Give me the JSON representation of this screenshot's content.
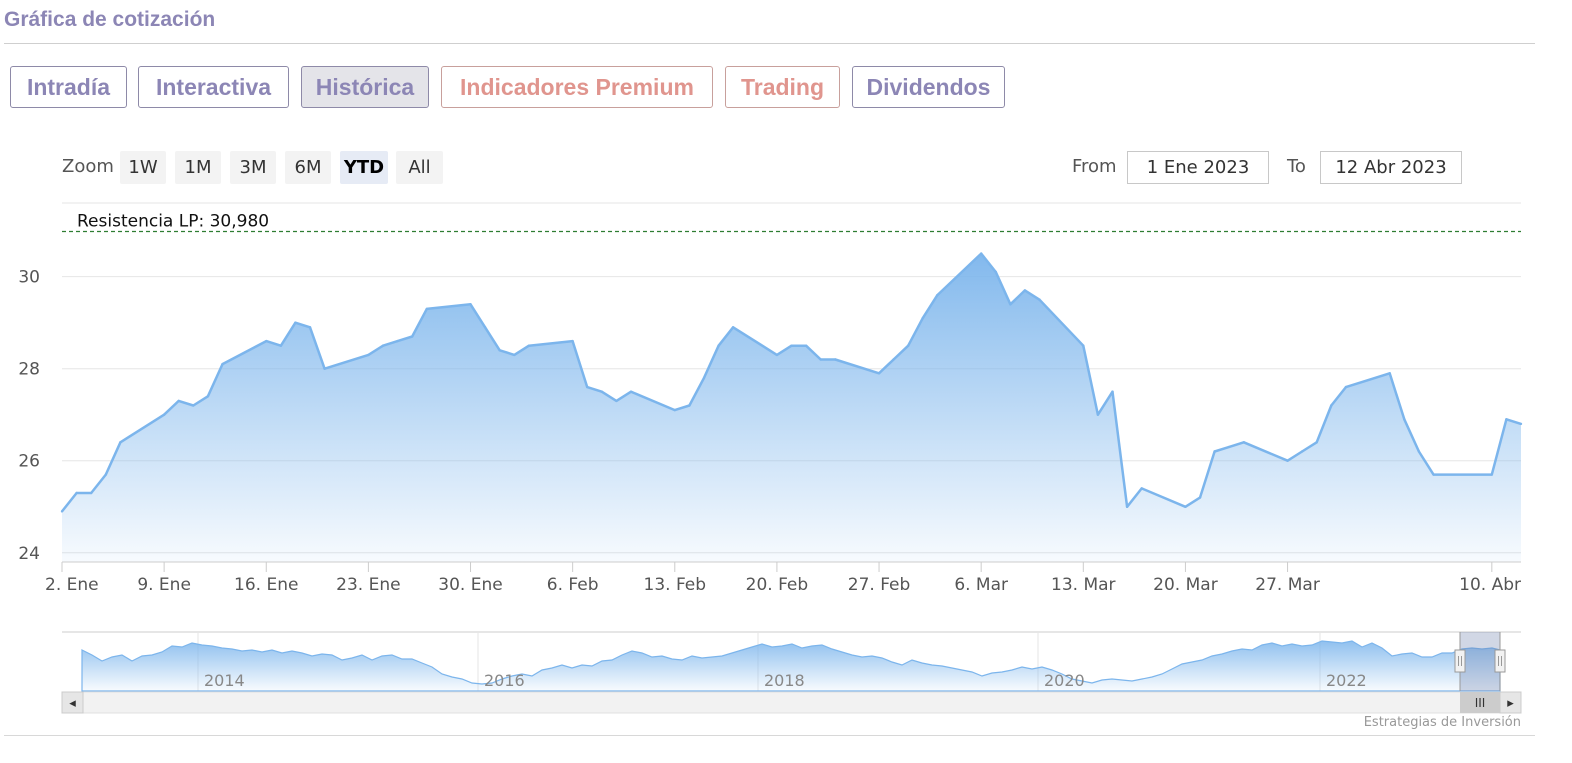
{
  "section": {
    "title": "Gráfica de cotización"
  },
  "tabs": [
    {
      "label": "Intradía",
      "active": false,
      "premium": false
    },
    {
      "label": "Interactiva",
      "active": false,
      "premium": false
    },
    {
      "label": "Histórica",
      "active": true,
      "premium": false
    },
    {
      "label": "Indicadores Premium",
      "active": false,
      "premium": true
    },
    {
      "label": "Trading",
      "active": false,
      "premium": true
    },
    {
      "label": "Dividendos",
      "active": false,
      "premium": false
    }
  ],
  "zoom": {
    "label": "Zoom",
    "buttons": [
      "1W",
      "1M",
      "3M",
      "6M",
      "YTD",
      "All"
    ],
    "selected": "YTD"
  },
  "range": {
    "from_label": "From",
    "from_value": "1 Ene 2023",
    "to_label": "To",
    "to_value": "12 Abr 2023"
  },
  "colors": {
    "accent": "#8c86b5",
    "premium": "#e0958e",
    "series_line": "#7cb5ec",
    "resistance_line": "#2e7d32"
  },
  "chart_data": {
    "type": "area",
    "resistance": {
      "label": "Resistencia LP: 30,980",
      "value": 30.98
    },
    "y_ticks": [
      24,
      26,
      28,
      30
    ],
    "ylim": [
      23.8,
      31.6
    ],
    "x_ticks": [
      "2. Ene",
      "9. Ene",
      "16. Ene",
      "23. Ene",
      "30. Ene",
      "6. Feb",
      "13. Feb",
      "20. Feb",
      "27. Feb",
      "6. Mar",
      "13. Mar",
      "20. Mar",
      "27. Mar",
      "10. Abr"
    ],
    "x": [
      "2023-01-02",
      "2023-01-03",
      "2023-01-04",
      "2023-01-05",
      "2023-01-06",
      "2023-01-09",
      "2023-01-10",
      "2023-01-11",
      "2023-01-12",
      "2023-01-13",
      "2023-01-16",
      "2023-01-17",
      "2023-01-18",
      "2023-01-19",
      "2023-01-20",
      "2023-01-23",
      "2023-01-24",
      "2023-01-25",
      "2023-01-26",
      "2023-01-27",
      "2023-01-30",
      "2023-01-31",
      "2023-02-01",
      "2023-02-02",
      "2023-02-03",
      "2023-02-06",
      "2023-02-07",
      "2023-02-08",
      "2023-02-09",
      "2023-02-10",
      "2023-02-13",
      "2023-02-14",
      "2023-02-15",
      "2023-02-16",
      "2023-02-17",
      "2023-02-20",
      "2023-02-21",
      "2023-02-22",
      "2023-02-23",
      "2023-02-24",
      "2023-02-27",
      "2023-02-28",
      "2023-03-01",
      "2023-03-02",
      "2023-03-03",
      "2023-03-06",
      "2023-03-07",
      "2023-03-08",
      "2023-03-09",
      "2023-03-10",
      "2023-03-13",
      "2023-03-14",
      "2023-03-15",
      "2023-03-16",
      "2023-03-17",
      "2023-03-20",
      "2023-03-21",
      "2023-03-22",
      "2023-03-23",
      "2023-03-24",
      "2023-03-27",
      "2023-03-28",
      "2023-03-29",
      "2023-03-30",
      "2023-03-31",
      "2023-04-03",
      "2023-04-04",
      "2023-04-05",
      "2023-04-06",
      "2023-04-10",
      "2023-04-11",
      "2023-04-12"
    ],
    "values": [
      24.9,
      25.3,
      25.3,
      25.7,
      26.4,
      27.0,
      27.3,
      27.2,
      27.4,
      28.1,
      28.6,
      28.5,
      29.0,
      28.9,
      28.0,
      28.3,
      28.5,
      28.6,
      28.7,
      29.3,
      29.4,
      28.9,
      28.4,
      28.3,
      28.5,
      28.6,
      27.6,
      27.5,
      27.3,
      27.5,
      27.1,
      27.2,
      27.8,
      28.5,
      28.9,
      28.3,
      28.5,
      28.5,
      28.2,
      28.2,
      27.9,
      28.2,
      28.5,
      29.1,
      29.6,
      30.5,
      30.1,
      29.4,
      29.7,
      29.5,
      28.5,
      27.0,
      27.5,
      25.0,
      25.4,
      25.0,
      25.2,
      26.2,
      26.3,
      26.4,
      26.0,
      26.2,
      26.4,
      27.2,
      27.6,
      27.9,
      26.9,
      26.2,
      25.7,
      25.7,
      26.9,
      26.8
    ]
  },
  "navigator": {
    "year_labels": [
      "2014",
      "2016",
      "2018",
      "2020",
      "2022"
    ],
    "scroll_left_label": "◂",
    "scroll_right_label": "▸",
    "grip_label": "III"
  },
  "credits": "Estrategias de Inversión"
}
